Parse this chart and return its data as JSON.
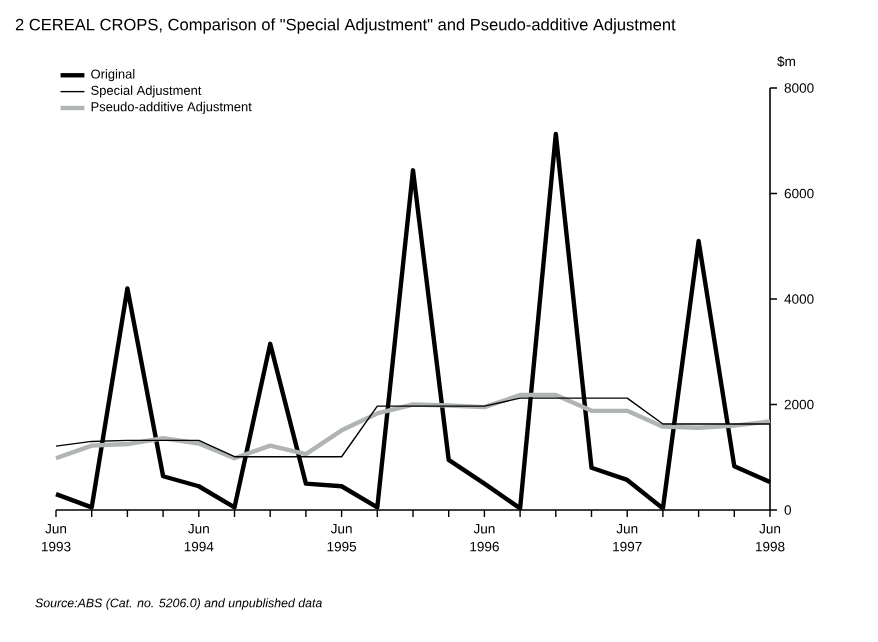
{
  "chart_data": {
    "type": "line",
    "title": "2  CEREAL CROPS, Comparison of \"Special Adjustment\" and Pseudo-additive Adjustment",
    "ylabel": "$m",
    "annotations": [
      "Source:ABS (Cat. no. 5206.0) and unpublished data"
    ],
    "categories": [
      "Jun 1993",
      null,
      null,
      null,
      "Jun 1994",
      null,
      null,
      null,
      "Jun 1995",
      null,
      null,
      null,
      "Jun 1996",
      null,
      null,
      null,
      "Jun 1997",
      null,
      null,
      null,
      "Jun 1998"
    ],
    "series": [
      {
        "name": "Original",
        "color": "#000000",
        "values": [
          300,
          50,
          4200,
          640,
          450,
          50,
          3150,
          500,
          450,
          50,
          6440,
          950,
          500,
          30,
          7130,
          800,
          570,
          30,
          5100,
          830,
          530
        ]
      },
      {
        "name": "Special Adjustment",
        "color": "#000000",
        "values": [
          1210,
          1300,
          1320,
          1320,
          1320,
          1010,
          1010,
          1010,
          1010,
          1970,
          1970,
          1970,
          1970,
          2120,
          2120,
          2120,
          2120,
          1630,
          1630,
          1630,
          1630
        ]
      },
      {
        "name": "Pseudo-additive Adjustment",
        "color": "#b0b4b4",
        "values": [
          980,
          1220,
          1250,
          1360,
          1260,
          980,
          1220,
          1060,
          1510,
          1830,
          2000,
          1980,
          1950,
          2180,
          2180,
          1880,
          1880,
          1580,
          1560,
          1600,
          1680
        ]
      }
    ],
    "ylim": [
      0,
      8000
    ],
    "yticks": [
      0,
      2000,
      4000,
      6000,
      8000
    ],
    "legend": "top left"
  }
}
